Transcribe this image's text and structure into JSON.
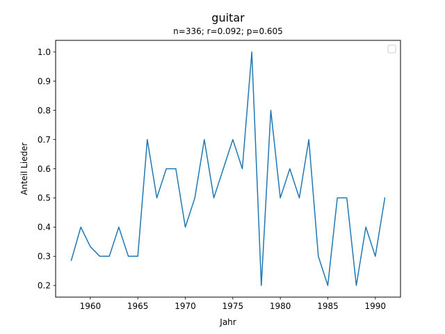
{
  "chart_data": {
    "type": "line",
    "title": "guitar",
    "subtitle": "n=336; r=0.092; p=0.605",
    "xlabel": "Jahr",
    "ylabel": "Anteil Lieder",
    "xlim": [
      1956.35,
      1992.65
    ],
    "ylim": [
      0.16,
      1.04
    ],
    "x_ticks": [
      1960,
      1965,
      1970,
      1975,
      1980,
      1985,
      1990
    ],
    "y_ticks": [
      0.2,
      0.3,
      0.4,
      0.5,
      0.6,
      0.7,
      0.8,
      0.9,
      1.0
    ],
    "x_tick_labels": [
      "1960",
      "1965",
      "1970",
      "1975",
      "1980",
      "1985",
      "1990"
    ],
    "y_tick_labels": [
      "0.2",
      "0.3",
      "0.4",
      "0.5",
      "0.6",
      "0.7",
      "0.8",
      "0.9",
      "1.0"
    ],
    "grid": false,
    "legend": "top-right",
    "series": [
      {
        "color": "#1f77b4",
        "x": [
          1958,
          1959,
          1960,
          1961,
          1962,
          1963,
          1964,
          1965,
          1966,
          1967,
          1968,
          1969,
          1970,
          1971,
          1972,
          1973,
          1974,
          1975,
          1976,
          1977,
          1978,
          1979,
          1980,
          1981,
          1982,
          1983,
          1984,
          1985,
          1986,
          1987,
          1988,
          1989,
          1990,
          1991
        ],
        "y": [
          0.286,
          0.4,
          0.333,
          0.3,
          0.3,
          0.4,
          0.3,
          0.3,
          0.7,
          0.5,
          0.6,
          0.6,
          0.4,
          0.5,
          0.7,
          0.5,
          0.6,
          0.7,
          0.6,
          1.0,
          0.2,
          0.8,
          0.5,
          0.6,
          0.5,
          0.7,
          0.3,
          0.2,
          0.5,
          0.5,
          0.2,
          0.4,
          0.3,
          0.5
        ]
      }
    ]
  }
}
